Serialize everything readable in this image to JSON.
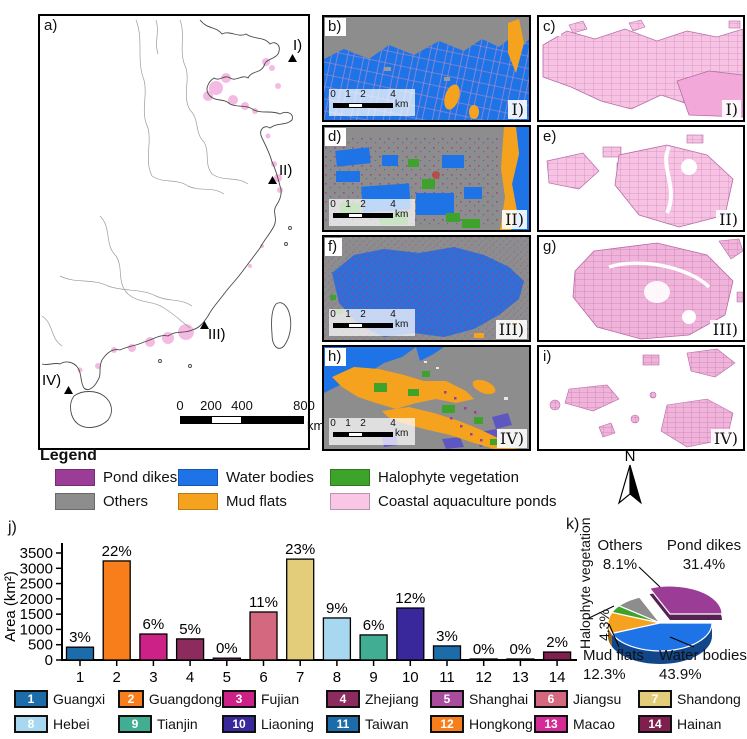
{
  "figure": {
    "title_labels": {
      "j": "j)",
      "k": "k)"
    },
    "north_arrow_label": "N",
    "panels": {
      "a": {
        "label": "a)",
        "sites": [
          "I)",
          "II)",
          "III)",
          "IV)"
        ],
        "scalebar": {
          "ticks": [
            "0",
            "200",
            "400",
            "800"
          ],
          "unit": "km"
        }
      },
      "b": {
        "label": "b)",
        "site": "I)",
        "scalebar": {
          "ticks": [
            "0",
            "1",
            "2",
            "4"
          ],
          "unit": "km"
        }
      },
      "c": {
        "label": "c)",
        "site": "I)"
      },
      "d": {
        "label": "d)",
        "site": "II)",
        "scalebar": {
          "ticks": [
            "0",
            "1",
            "2",
            "4"
          ],
          "unit": "km"
        }
      },
      "e": {
        "label": "e)",
        "site": "II)"
      },
      "f": {
        "label": "f)",
        "site": "III)",
        "scalebar": {
          "ticks": [
            "0",
            "1",
            "2",
            "4"
          ],
          "unit": "km"
        }
      },
      "g": {
        "label": "g)",
        "site": "III)"
      },
      "h": {
        "label": "h)",
        "site": "IV)",
        "scalebar": {
          "ticks": [
            "0",
            "1",
            "2",
            "4"
          ],
          "unit": "km"
        }
      },
      "i": {
        "label": "i)",
        "site": "IV)"
      }
    },
    "legend": {
      "title": "Legend",
      "items": [
        {
          "label": "Pond dikes",
          "color": "#9b3d97"
        },
        {
          "label": "Water bodies",
          "color": "#1e74e6"
        },
        {
          "label": "Halophyte vegetation",
          "color": "#3da32a"
        },
        {
          "label": "Others",
          "color": "#8d8d8d"
        },
        {
          "label": "Mud flats",
          "color": "#f5a31f"
        },
        {
          "label": "Coastal aquaculture ponds",
          "color": "#f9c6e6"
        }
      ]
    }
  },
  "chart_data": [
    {
      "type": "bar",
      "panel": "j",
      "title": "",
      "xlabel": "",
      "ylabel": "Area (km²)",
      "ylim": [
        0,
        3500
      ],
      "yticks": [
        0,
        500,
        1000,
        1500,
        2000,
        2500,
        3000,
        3500
      ],
      "categories": [
        "1",
        "2",
        "3",
        "4",
        "5",
        "6",
        "7",
        "8",
        "9",
        "10",
        "11",
        "12",
        "13",
        "14"
      ],
      "values": [
        420,
        3240,
        850,
        690,
        60,
        1570,
        3300,
        1375,
        820,
        1700,
        460,
        30,
        15,
        260
      ],
      "percent_labels": [
        "3%",
        "22%",
        "6%",
        "5%",
        "0%",
        "11%",
        "23%",
        "9%",
        "6%",
        "12%",
        "3%",
        "0%",
        "0%",
        "2%"
      ],
      "colors": [
        "#1b6ca8",
        "#f87e1b",
        "#cc2186",
        "#8e2b5e",
        "#a84c9e",
        "#d4687f",
        "#e3cc7a",
        "#a8d8f0",
        "#41ae94",
        "#39289b",
        "#1b6ca8",
        "#f87e1b",
        "#d62b96",
        "#7e1f4e"
      ]
    },
    {
      "type": "pie",
      "panel": "k",
      "exploded": "Pond dikes",
      "slices": [
        {
          "label": "Pond dikes",
          "pct": "31.4%",
          "value": 31.4,
          "color": "#9b3d97"
        },
        {
          "label": "Others",
          "pct": "8.1%",
          "value": 8.1,
          "color": "#8d8d8d"
        },
        {
          "label": "Halophyte vegetation",
          "pct": "4.3%",
          "value": 4.3,
          "color": "#3da32a"
        },
        {
          "label": "Mud flats",
          "pct": "12.3%",
          "value": 12.3,
          "color": "#f5a31f"
        },
        {
          "label": "Water bodies",
          "pct": "43.9%",
          "value": 43.9,
          "color": "#1e74e6"
        }
      ]
    }
  ],
  "province_legend": [
    {
      "num": "1",
      "name": "Guangxi",
      "color": "#1b6ca8"
    },
    {
      "num": "2",
      "name": "Guangdong",
      "color": "#f87e1b"
    },
    {
      "num": "3",
      "name": "Fujian",
      "color": "#cc2186"
    },
    {
      "num": "4",
      "name": "Zhejiang",
      "color": "#8e2b5e"
    },
    {
      "num": "5",
      "name": "Shanghai",
      "color": "#a84c9e"
    },
    {
      "num": "6",
      "name": "Jiangsu",
      "color": "#d4687f"
    },
    {
      "num": "7",
      "name": "Shandong",
      "color": "#e3cc7a"
    },
    {
      "num": "8",
      "name": "Hebei",
      "color": "#a8d8f0"
    },
    {
      "num": "9",
      "name": "Tianjin",
      "color": "#41ae94"
    },
    {
      "num": "10",
      "name": "Liaoning",
      "color": "#39289b"
    },
    {
      "num": "11",
      "name": "Taiwan",
      "color": "#1b6ca8"
    },
    {
      "num": "12",
      "name": "Hongkong",
      "color": "#f87e1b"
    },
    {
      "num": "13",
      "name": "Macao",
      "color": "#d62b96"
    },
    {
      "num": "14",
      "name": "Hainan",
      "color": "#7e1f4e"
    }
  ]
}
